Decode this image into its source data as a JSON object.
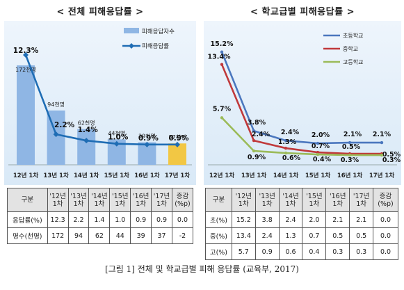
{
  "charts": {
    "left": {
      "title": "< 전체 피해응답률 >",
      "legend": {
        "bar_label": "피해응답자수",
        "line_label": "피해응답률"
      },
      "bar_color": "#8fb6e4",
      "highlight_bar_color": "#f2c744",
      "line_color": "#1f6db4"
    },
    "right": {
      "title": "< 학교급별 피해응답률 >"
    }
  },
  "chart_data": [
    {
      "type": "bar",
      "title": "< 전체 피해응답률 >",
      "categories": [
        "12년 1차",
        "13년 1차",
        "14년 1차",
        "15년 1차",
        "16년 1차",
        "17년 1차"
      ],
      "series": [
        {
          "name": "피해응답자수",
          "type": "bar",
          "values": [
            172,
            94,
            62,
            44,
            39,
            37
          ],
          "labels": [
            "172천명",
            "94천명",
            "62천명",
            "44천명",
            "39천명",
            "37천명"
          ]
        },
        {
          "name": "피해응답률",
          "type": "line",
          "values": [
            12.3,
            2.2,
            1.4,
            1.0,
            0.9,
            0.9
          ],
          "labels": [
            "12.3%",
            "2.2%",
            "1.4%",
            "1.0%",
            "0.9%",
            "0.9%"
          ]
        }
      ],
      "grid": false,
      "legend_position": "top-right"
    },
    {
      "type": "line",
      "title": "< 학교급별 피해응답률 >",
      "categories": [
        "12년 1차",
        "13년 1차",
        "14년 1차",
        "15년 1차",
        "16년 1차",
        "17년 1차"
      ],
      "series": [
        {
          "name": "초등학교",
          "color": "#4b77be",
          "values": [
            15.2,
            3.8,
            2.4,
            2.0,
            2.1,
            2.1
          ],
          "labels": [
            "15.2%",
            "3.8%",
            "2.4%",
            "2.0%",
            "2.1%",
            "2.1%"
          ]
        },
        {
          "name": "중학교",
          "color": "#c0393b",
          "values": [
            13.4,
            2.4,
            1.3,
            0.7,
            0.5,
            0.5
          ],
          "labels": [
            "13.4%",
            "2.4%",
            "1.3%",
            "0.7%",
            "0.5%",
            "0.5%"
          ]
        },
        {
          "name": "고등학교",
          "color": "#9bbb59",
          "values": [
            5.7,
            0.9,
            0.6,
            0.4,
            0.3,
            0.3
          ],
          "labels": [
            "5.7%",
            "0.9%",
            "0.6%",
            "0.4%",
            "0.3%",
            "0.3%"
          ]
        }
      ],
      "grid": false,
      "legend_position": "top-right"
    }
  ],
  "tables": {
    "left": {
      "corner": "구분",
      "headers": [
        [
          "'12년",
          "1차"
        ],
        [
          "'13년",
          "1차"
        ],
        [
          "'14년",
          "1차"
        ],
        [
          "'15년",
          "1차"
        ],
        [
          "'16년",
          "1차"
        ],
        [
          "'17년",
          "1차"
        ],
        [
          "증감",
          "(%p)"
        ]
      ],
      "rows": [
        {
          "label": "응답률(%)",
          "cells": [
            "12.3",
            "2.2",
            "1.4",
            "1.0",
            "0.9",
            "0.9",
            "0.0"
          ]
        },
        {
          "label": "명수(천명)",
          "cells": [
            "172",
            "94",
            "62",
            "44",
            "39",
            "37",
            "-2"
          ]
        }
      ]
    },
    "right": {
      "corner": "구분",
      "headers": [
        [
          "'12년",
          "1차"
        ],
        [
          "'13년",
          "1차"
        ],
        [
          "'14년",
          "1차"
        ],
        [
          "'15년",
          "1차"
        ],
        [
          "'16년",
          "1차"
        ],
        [
          "'17년",
          "1차"
        ],
        [
          "증감",
          "(%p)"
        ]
      ],
      "rows": [
        {
          "label": "초(%)",
          "cells": [
            "15.2",
            "3.8",
            "2.4",
            "2.0",
            "2.1",
            "2.1",
            "0.0"
          ]
        },
        {
          "label": "중(%)",
          "cells": [
            "13.4",
            "2.4",
            "1.3",
            "0.7",
            "0.5",
            "0.5",
            "0.0"
          ]
        },
        {
          "label": "고(%)",
          "cells": [
            "5.7",
            "0.9",
            "0.6",
            "0.4",
            "0.3",
            "0.3",
            "0.0"
          ]
        }
      ]
    }
  },
  "caption": "[그림 1] 전체 및 학교급별 피해 응답률 (교육부, 2017)"
}
